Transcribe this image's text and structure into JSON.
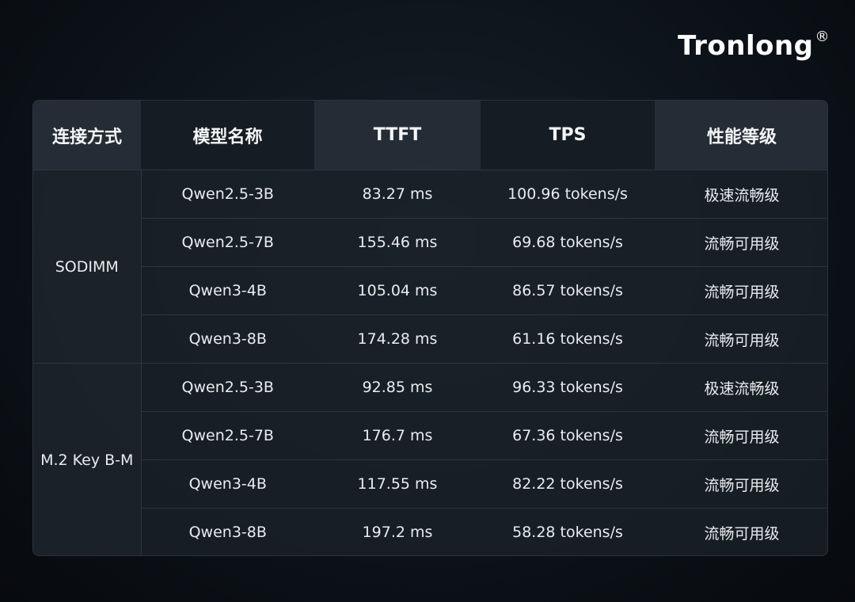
{
  "header": {
    "brand": "Tronlong",
    "brand_mark": "®"
  },
  "table": {
    "columns": [
      "连接方式",
      "模型名称",
      "TTFT",
      "TPS",
      "性能等级"
    ],
    "groups": [
      {
        "label": "SODIMM",
        "rows": [
          [
            "Qwen2.5-3B",
            "83.27 ms",
            "100.96 tokens/s",
            "极速流畅级"
          ],
          [
            "Qwen2.5-7B",
            "155.46 ms",
            "69.68 tokens/s",
            "流畅可用级"
          ],
          [
            "Qwen3-4B",
            "105.04 ms",
            "86.57 tokens/s",
            "流畅可用级"
          ],
          [
            "Qwen3-8B",
            "174.28 ms",
            "61.16 tokens/s",
            "流畅可用级"
          ]
        ]
      },
      {
        "label": "M.2 Key B-M",
        "rows": [
          [
            "Qwen2.5-3B",
            "92.85 ms",
            "96.33 tokens/s",
            "极速流畅级"
          ],
          [
            "Qwen2.5-7B",
            "176.7 ms",
            "67.36 tokens/s",
            "流畅可用级"
          ],
          [
            "Qwen3-4B",
            "117.55 ms",
            "82.22 tokens/s",
            "流畅可用级"
          ],
          [
            "Qwen3-8B",
            "197.2 ms",
            "58.28 tokens/s",
            "流畅可用级"
          ]
        ]
      }
    ]
  }
}
